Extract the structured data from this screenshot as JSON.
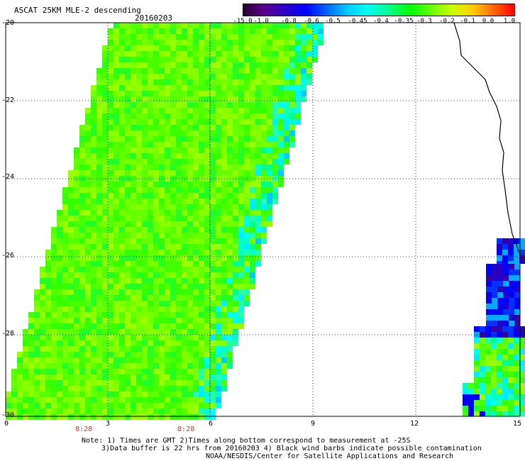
{
  "header": {
    "title": "ASCAT 25KM MLE-2 descending",
    "date": "20160203"
  },
  "colorbar": {
    "labels": [
      "-15.0",
      "-1.0",
      "-0.8",
      "-0.6",
      "-0.5",
      "-0.45",
      "-0.4",
      "-0.35",
      "-0.3",
      "-0.2",
      "-0.1",
      "0.0",
      "1.0"
    ],
    "colors": [
      "#2a0033",
      "#5a0090",
      "#2b00c8",
      "#0000ff",
      "#0066ff",
      "#00ccff",
      "#00ffee",
      "#00ff88",
      "#00ff00",
      "#66ff00",
      "#ccff00",
      "#ffcc00",
      "#ff6600",
      "#ff0000"
    ]
  },
  "axes": {
    "y_ticks": [
      "-20",
      "-22",
      "-24",
      "-26",
      "-28",
      "-30"
    ],
    "x_ticks": [
      "0",
      "3",
      "6",
      "9",
      "12",
      "15"
    ],
    "time_labels": [
      "8:28",
      "8:28"
    ]
  },
  "notes": {
    "line1": "Note: 1) Times are GMT 2)Times along bottom correspond to measurement at -25S",
    "line2": "3)Data buffer is 22 hrs from 20160203 4) Black wind barbs indicate possible contamination",
    "line3": "NOAA/NESDIS/Center for Satellite Applications and Research"
  }
}
